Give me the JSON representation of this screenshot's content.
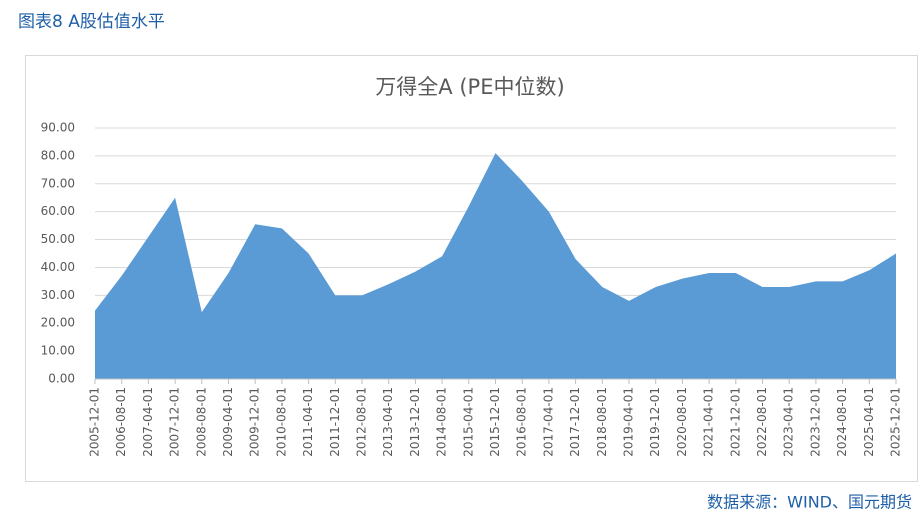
{
  "header": {
    "title": "图表8 A股估值水平"
  },
  "footer": {
    "source": "数据来源：WIND、国元期货"
  },
  "chart_data": {
    "type": "area",
    "title": "万得全A (PE中位数)",
    "categories": [
      "2005-12-01",
      "2006-08-01",
      "2007-04-01",
      "2007-12-01",
      "2008-08-01",
      "2009-04-01",
      "2009-12-01",
      "2010-08-01",
      "2011-04-01",
      "2011-12-01",
      "2012-08-01",
      "2013-04-01",
      "2013-12-01",
      "2014-08-01",
      "2015-04-01",
      "2015-12-01",
      "2016-08-01",
      "2017-04-01",
      "2017-12-01",
      "2018-08-01",
      "2019-04-01",
      "2019-12-01",
      "2020-08-01",
      "2021-04-01",
      "2021-12-01",
      "2022-08-01",
      "2023-04-01",
      "2023-12-01",
      "2024-08-01",
      "2025-04-01",
      "2025-12-01"
    ],
    "values": [
      24.5,
      37,
      51,
      65,
      24,
      38,
      55.5,
      54,
      45,
      30,
      30,
      34,
      38.5,
      44,
      62,
      81,
      71,
      60,
      43,
      33,
      28,
      33,
      36,
      38,
      38,
      33,
      33,
      35,
      35,
      39,
      45
    ],
    "color": "#5b9bd5",
    "ylim": [
      0,
      90
    ],
    "yticks": [
      {
        "value": 0,
        "label": "0.00"
      },
      {
        "value": 10,
        "label": "10.00"
      },
      {
        "value": 20,
        "label": "20.00"
      },
      {
        "value": 30,
        "label": "30.00"
      },
      {
        "value": 40,
        "label": "40.00"
      },
      {
        "value": 50,
        "label": "50.00"
      },
      {
        "value": 60,
        "label": "60.00"
      },
      {
        "value": 70,
        "label": "70.00"
      },
      {
        "value": 80,
        "label": "80.00"
      },
      {
        "value": 90,
        "label": "90.00"
      }
    ],
    "grid": true
  }
}
